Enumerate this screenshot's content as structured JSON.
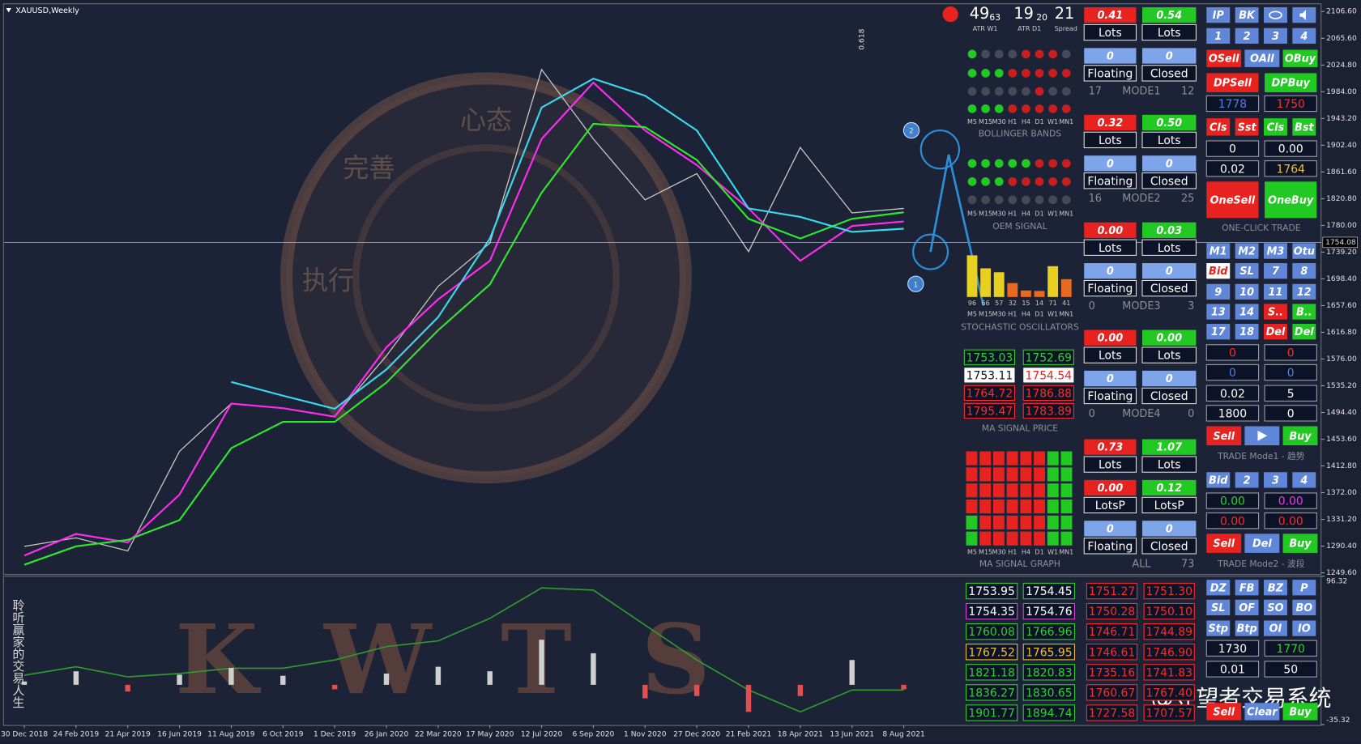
{
  "chart_data": [
    {
      "type": "line",
      "symbol": "XAUUSD,Weekly",
      "categories": [
        "30 Dec 2018",
        "24 Feb 2019",
        "21 Apr 2019",
        "16 Jun 2019",
        "11 Aug 2019",
        "6 Oct 2019",
        "1 Dec 2019",
        "26 Jan 2020",
        "22 Mar 2020",
        "17 May 2020",
        "12 Jul 2020",
        "6 Sep 2020",
        "1 Nov 2020",
        "27 Dec 2020",
        "21 Feb 2021",
        "18 Apr 2021",
        "13 Jun 2021",
        "8 Aug 2021"
      ],
      "series": [
        {
          "color": "#c8c8c8",
          "values": [
            1290,
            1303,
            1283,
            1435,
            1508,
            1501,
            1488,
            1581,
            1687,
            1753,
            2018,
            1912,
            1819,
            1859,
            1740,
            1899,
            1799,
            1806
          ]
        },
        {
          "color": "#ff2cf0",
          "values": [
            1276,
            1309,
            1296,
            1369,
            1508,
            1501,
            1488,
            1594,
            1667,
            1726,
            1912,
            1998,
            1925,
            1872,
            1806,
            1726,
            1779,
            1786
          ]
        },
        {
          "color": "#2ee82e",
          "values": [
            1262,
            1290,
            1300,
            1330,
            1440,
            1480,
            1480,
            1540,
            1620,
            1690,
            1830,
            1935,
            1930,
            1880,
            1790,
            1760,
            1790,
            1800
          ]
        },
        {
          "color": "#3ad8ee",
          "values": [
            null,
            null,
            null,
            null,
            1541,
            1520,
            1500,
            1560,
            1640,
            1760,
            1960,
            2004,
            1978,
            1925,
            1806,
            1793,
            1770,
            1775
          ]
        }
      ],
      "ylim": [
        1247,
        2117
      ],
      "yticks": [
        {
          "value": 2106.6,
          "label": "2106.60"
        },
        {
          "value": 2065.6,
          "label": "2065.60"
        },
        {
          "value": 2024.8,
          "label": "2024.80"
        },
        {
          "value": 1984.0,
          "label": "1984.00"
        },
        {
          "value": 1943.2,
          "label": "1943.20"
        },
        {
          "value": 1902.4,
          "label": "1902.40"
        },
        {
          "value": 1861.6,
          "label": "1861.60"
        },
        {
          "value": 1820.8,
          "label": "1820.80"
        },
        {
          "value": 1780.0,
          "label": "1780.00"
        },
        {
          "value": 1739.2,
          "label": "1739.20"
        },
        {
          "value": 1698.4,
          "label": "1698.40"
        },
        {
          "value": 1657.6,
          "label": "1657.60"
        },
        {
          "value": 1616.8,
          "label": "1616.80"
        },
        {
          "value": 1576.0,
          "label": "1576.00"
        },
        {
          "value": 1535.2,
          "label": "1535.20"
        },
        {
          "value": 1494.4,
          "label": "1494.40"
        },
        {
          "value": 1453.6,
          "label": "1453.60"
        },
        {
          "value": 1412.8,
          "label": "1412.80"
        },
        {
          "value": 1372.0,
          "label": "1372.00"
        },
        {
          "value": 1331.2,
          "label": "1331.20"
        },
        {
          "value": 1290.4,
          "label": "1290.40"
        },
        {
          "value": 1249.6,
          "label": "1249.60"
        }
      ],
      "current_price": 1754.08,
      "annotations": [
        "0.618",
        "1",
        "2"
      ]
    },
    {
      "type": "line",
      "series": [
        {
          "color": "#2e9e2e",
          "values": [
            8.5,
            16,
            7,
            10,
            14.7,
            14.7,
            22,
            34,
            39,
            59,
            86,
            84,
            53,
            22,
            -4.6,
            -24,
            -4.6,
            -4.6
          ]
        },
        {
          "type": "bar",
          "color": "#cfcfcf",
          "values": [
            3,
            12,
            -6,
            9,
            15,
            8,
            -4,
            10,
            16,
            12,
            40,
            28,
            -12,
            -10,
            -24,
            -10,
            22,
            -4
          ]
        }
      ],
      "ylim": [
        -35.32,
        96.32
      ],
      "yticks": [
        96.32,
        -35.32
      ]
    }
  ],
  "panel": {
    "atr": [
      "49",
      "63",
      "19",
      "20",
      "21"
    ],
    "atr_labels": [
      "ATR W1",
      "ATR D1",
      "Spread"
    ],
    "timeframes": [
      "M5",
      "M15",
      "M30",
      "H1",
      "H4",
      "D1",
      "W1",
      "MN1"
    ],
    "sections": [
      "BOLLINGER BANDS",
      "OEM SIGNAL",
      "STOCHASTIC OSCILLATORS",
      "MA SIGNAL PRICE",
      "MA SIGNAL GRAPH"
    ],
    "stochastic": [
      96,
      66,
      57,
      32,
      15,
      14,
      71,
      41
    ],
    "ma_signal_price": [
      [
        "1753.03",
        "1752.69"
      ],
      [
        "1753.11",
        "1754.54"
      ],
      [
        "1764.72",
        "1786.88"
      ],
      [
        "1795.47",
        "1783.89"
      ]
    ],
    "modes": [
      {
        "lots": [
          "0.41",
          "0.54"
        ],
        "lots_label": [
          "Lots",
          "Lots"
        ],
        "pl": [
          "0",
          "0"
        ],
        "pl_label": [
          "Floating",
          "Closed"
        ],
        "footer": [
          "17",
          "MODE1",
          "12"
        ]
      },
      {
        "lots": [
          "0.32",
          "0.50"
        ],
        "lots_label": [
          "Lots",
          "Lots"
        ],
        "pl": [
          "0",
          "0"
        ],
        "pl_label": [
          "Floating",
          "Closed"
        ],
        "footer": [
          "16",
          "MODE2",
          "25"
        ]
      },
      {
        "lots": [
          "0.00",
          "0.03"
        ],
        "lots_label": [
          "Lots",
          "Lots"
        ],
        "pl": [
          "0",
          "0"
        ],
        "pl_label": [
          "Floating",
          "Closed"
        ],
        "footer": [
          "0",
          "MODE3",
          "3"
        ]
      },
      {
        "lots": [
          "0.00",
          "0.00"
        ],
        "lots_label": [
          "Lots",
          "Lots"
        ],
        "pl": [
          "0",
          "0"
        ],
        "pl_label": [
          "Floating",
          "Closed"
        ],
        "footer": [
          "0",
          "MODE4",
          "0"
        ]
      }
    ],
    "all": {
      "lots": [
        "0.73",
        "1.07"
      ],
      "lots_label": [
        "Lots",
        "Lots"
      ],
      "lotsp": [
        "0.00",
        "0.12"
      ],
      "lotsp_label": [
        "LotsP",
        "LotsP"
      ],
      "pl": [
        "0",
        "0"
      ],
      "pl_label": [
        "Floating",
        "Closed"
      ],
      "footer": [
        "ALL",
        "73"
      ]
    },
    "levels_left": [
      [
        "1753.95",
        "1754.45"
      ],
      [
        "1754.35",
        "1754.76"
      ],
      [
        "1760.08",
        "1766.96"
      ],
      [
        "1767.52",
        "1765.95"
      ],
      [
        "1821.18",
        "1820.83"
      ],
      [
        "1836.27",
        "1830.65"
      ],
      [
        "1901.77",
        "1894.74"
      ]
    ],
    "levels_right": [
      [
        "1751.27",
        "1751.30"
      ],
      [
        "1750.28",
        "1750.10"
      ],
      [
        "1746.71",
        "1744.89"
      ],
      [
        "1746.61",
        "1746.90"
      ],
      [
        "1735.16",
        "1741.83"
      ],
      [
        "1760.67",
        "1767.40"
      ],
      [
        "1727.58",
        "1707.57"
      ]
    ],
    "buttons": [
      [
        "IP",
        "BK"
      ],
      [
        "1",
        "2",
        "3",
        "4"
      ],
      [
        "OSell",
        "OAll",
        "OBuy"
      ],
      [
        "DPSell",
        "DPBuy"
      ],
      [
        "1778",
        "1750"
      ],
      [
        "Cls",
        "Sst",
        "Cls",
        "Bst"
      ],
      [
        "0",
        "0.00"
      ],
      [
        "0.02",
        "1764"
      ],
      [
        "OneSell",
        "OneBuy"
      ],
      [
        "M1",
        "M2",
        "M3",
        "Otu"
      ],
      [
        "Bid",
        "SL",
        "7",
        "8"
      ],
      [
        "9",
        "10",
        "11",
        "12"
      ],
      [
        "13",
        "14",
        "S..",
        "B.."
      ],
      [
        "17",
        "18",
        "Del",
        "Del"
      ],
      [
        "0",
        "0"
      ],
      [
        "0",
        "0"
      ],
      [
        "0.02",
        "5"
      ],
      [
        "1800",
        "0"
      ],
      [
        "Sell",
        "Buy"
      ],
      [
        "Bid",
        "2",
        "3",
        "4"
      ],
      [
        "0.00",
        "0.00"
      ],
      [
        "0.00",
        "0.00"
      ],
      [
        "Sell",
        "Del",
        "Buy"
      ],
      [
        "DZ",
        "FB",
        "BZ",
        "P"
      ],
      [
        "SL",
        "OF",
        "SO",
        "BO"
      ],
      [
        "Stp",
        "Btp",
        "OI",
        "IO"
      ],
      [
        "1730",
        "1770"
      ],
      [
        "0.01",
        "50"
      ],
      [
        "Sell",
        "Clear",
        "Buy"
      ]
    ],
    "button_titles": [
      "ONE-CLICK TRADE",
      "TRADE Mode1 - 趋势",
      "TRADE Mode2 - 波段"
    ]
  },
  "watermark": {
    "brand": "KWTS",
    "circle_words": [
      "心态",
      "完善",
      "执行"
    ],
    "motto": "聆听赢家的交易人生",
    "signature": "@守望者交易系统"
  }
}
